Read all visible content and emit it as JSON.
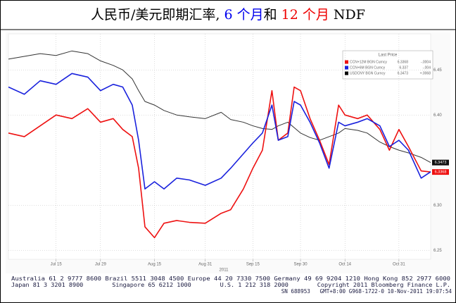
{
  "chart_data": {
    "type": "line",
    "title_parts": [
      {
        "text": "人民币/美元即期汇率, ",
        "color": "#000000"
      },
      {
        "text": "6 个月",
        "color": "#0000ee"
      },
      {
        "text": "和 ",
        "color": "#000000"
      },
      {
        "text": "12 个月",
        "color": "#ee0000"
      },
      {
        "text": " NDF",
        "color": "#000000"
      }
    ],
    "x": [
      "2011-06-30",
      "2011-07-05",
      "2011-07-10",
      "2011-07-15",
      "2011-07-20",
      "2011-07-25",
      "2011-07-29",
      "2011-08-02",
      "2011-08-05",
      "2011-08-08",
      "2011-08-10",
      "2011-08-12",
      "2011-08-15",
      "2011-08-18",
      "2011-08-22",
      "2011-08-26",
      "2011-08-31",
      "2011-09-05",
      "2011-09-08",
      "2011-09-12",
      "2011-09-15",
      "2011-09-18",
      "2011-09-21",
      "2011-09-23",
      "2011-09-26",
      "2011-09-28",
      "2011-09-30",
      "2011-10-03",
      "2011-10-06",
      "2011-10-09",
      "2011-10-12",
      "2011-10-14",
      "2011-10-18",
      "2011-10-21",
      "2011-10-25",
      "2011-10-28",
      "2011-10-31",
      "2011-11-03",
      "2011-11-07",
      "2011-11-10"
    ],
    "series": [
      {
        "name": "CCN+12M BGN Curncy",
        "last": "6.3368",
        "change": "-.0004",
        "color": "#ee1111",
        "tag": true,
        "values": [
          6.38,
          6.376,
          6.388,
          6.4,
          6.396,
          6.407,
          6.392,
          6.396,
          6.384,
          6.376,
          6.341,
          6.276,
          6.264,
          6.28,
          6.283,
          6.281,
          6.28,
          6.291,
          6.295,
          6.318,
          6.341,
          6.361,
          6.427,
          6.372,
          6.38,
          6.431,
          6.427,
          6.396,
          6.372,
          6.345,
          6.411,
          6.4,
          6.396,
          6.4,
          6.384,
          6.361,
          6.384,
          6.365,
          6.338,
          6.3368
        ]
      },
      {
        "name": "CCN+6M BGN Curncy",
        "last": "6.337",
        "change": "-.004",
        "color": "#1a22dd",
        "tag": false,
        "values": [
          6.431,
          6.423,
          6.438,
          6.434,
          6.446,
          6.442,
          6.427,
          6.434,
          6.431,
          6.411,
          6.372,
          6.318,
          6.326,
          6.318,
          6.33,
          6.328,
          6.322,
          6.33,
          6.341,
          6.357,
          6.369,
          6.38,
          6.411,
          6.372,
          6.376,
          6.415,
          6.411,
          6.392,
          6.369,
          6.341,
          6.392,
          6.388,
          6.392,
          6.396,
          6.388,
          6.365,
          6.372,
          6.361,
          6.33,
          6.337
        ]
      },
      {
        "name": "USDCNY BGN Curncy",
        "last": "6.3473",
        "change": "+.0068",
        "color": "#333333",
        "tag": true,
        "values": [
          6.462,
          6.465,
          6.468,
          6.466,
          6.471,
          6.468,
          6.46,
          6.455,
          6.45,
          6.44,
          6.427,
          6.415,
          6.411,
          6.405,
          6.4,
          6.398,
          6.396,
          6.403,
          6.395,
          6.392,
          6.388,
          6.385,
          6.384,
          6.388,
          6.392,
          6.386,
          6.38,
          6.375,
          6.372,
          6.376,
          6.38,
          6.385,
          6.383,
          6.38,
          6.37,
          6.365,
          6.361,
          6.358,
          6.353,
          6.3473
        ]
      }
    ],
    "legend_title": "Last Price",
    "xlim": [
      "2011-06-30",
      "2011-11-10"
    ],
    "xticks": [
      {
        "value": "2011-07-15",
        "label": "Jul 15"
      },
      {
        "value": "2011-07-29",
        "label": "Jul 29"
      },
      {
        "value": "2011-08-15",
        "label": "Aug 15"
      },
      {
        "value": "2011-08-31",
        "label": "Aug 31"
      },
      {
        "value": "2011-09-15",
        "label": "Sep 15"
      },
      {
        "value": "2011-09-30",
        "label": "Sep 30"
      },
      {
        "value": "2011-10-14",
        "label": "Oct 14"
      },
      {
        "value": "2011-10-31",
        "label": "Oct 31"
      }
    ],
    "x_year_label": "2011",
    "ylim": [
      6.24,
      6.49
    ],
    "yticks": [
      6.25,
      {
        "value": 6.3,
        "label": "6.30"
      },
      {
        "value": 6.4,
        "label": "6.40"
      },
      6.45
    ],
    "grid": true,
    "footer": [
      "Australia 61 2 9777 8600 Brazil 5511 3048 4500 Europe 44 20 7330 7500 Germany 49 69 9204 1210 Hong Kong 852 2977 6000",
      "Japan 81 3 3201 8900        Singapore 65 6212 1000        U.S. 1 212 318 2000        Copyright 2011 Bloomberg Finance L.P.",
      "SN 688953   GMT+8:00 G968-1722-0 10-Nov-2011 19:07:54"
    ]
  }
}
